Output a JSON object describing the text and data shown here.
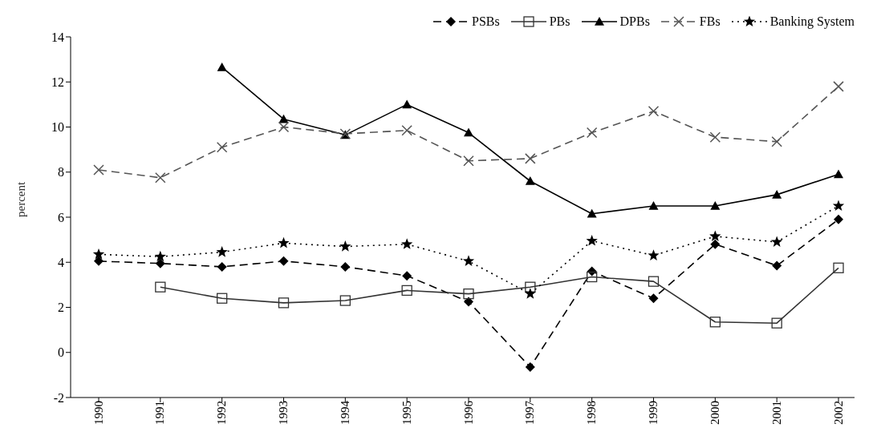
{
  "chart_data": {
    "type": "line",
    "ylabel": "percent",
    "categories": [
      "1990",
      "1991",
      "1992",
      "1993",
      "1994",
      "1995",
      "1996",
      "1997",
      "1998",
      "1999",
      "2000",
      "2001",
      "2002"
    ],
    "series": [
      {
        "name": "PSBs",
        "color": "#000000",
        "marker": "diamond",
        "line_style": "dashed",
        "values": [
          4.05,
          3.95,
          3.8,
          4.05,
          3.8,
          3.4,
          2.25,
          -0.65,
          3.6,
          2.4,
          4.8,
          3.85,
          5.9
        ]
      },
      {
        "name": "PBs",
        "color": "#333333",
        "marker": "square",
        "line_style": "solid",
        "values": [
          null,
          2.9,
          2.4,
          2.2,
          2.3,
          2.75,
          2.6,
          2.9,
          3.35,
          3.15,
          1.35,
          1.3,
          3.75
        ]
      },
      {
        "name": "DPBs",
        "color": "#000000",
        "marker": "triangle",
        "line_style": "solid",
        "values": [
          null,
          null,
          12.65,
          10.35,
          9.65,
          11.0,
          9.75,
          7.6,
          6.15,
          6.5,
          6.5,
          7.0,
          7.9
        ]
      },
      {
        "name": "FBs",
        "color": "#555555",
        "marker": "cross",
        "line_style": "dashed",
        "values": [
          8.1,
          7.75,
          9.1,
          10.0,
          9.7,
          9.85,
          8.5,
          8.6,
          9.75,
          10.7,
          9.55,
          9.35,
          11.8
        ]
      },
      {
        "name": "Banking System",
        "color": "#000000",
        "marker": "star",
        "line_style": "dotted",
        "values": [
          4.35,
          4.25,
          4.45,
          4.85,
          4.7,
          4.8,
          4.05,
          2.6,
          4.95,
          4.3,
          5.15,
          4.9,
          6.5
        ]
      }
    ],
    "ylim": [
      -2,
      14
    ],
    "yticks": [
      -2,
      0,
      2,
      4,
      6,
      8,
      10,
      12,
      14
    ],
    "grid": false,
    "legend": "top right"
  }
}
